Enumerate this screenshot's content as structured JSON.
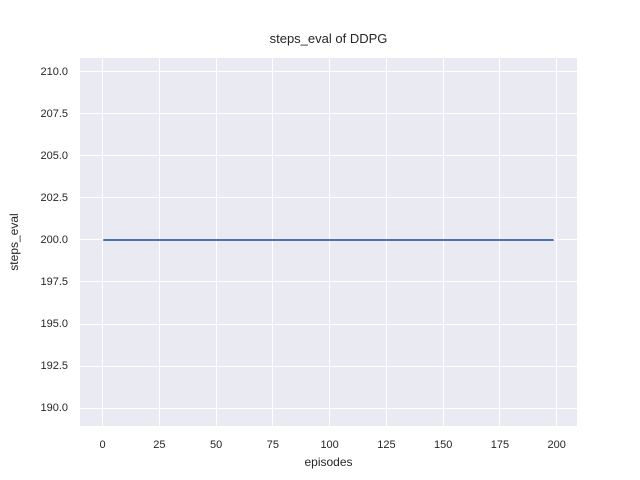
{
  "chart_data": {
    "type": "line",
    "title": "steps_eval of DDPG",
    "xlabel": "episodes",
    "ylabel": "steps_eval",
    "x_tick_values": [
      0,
      25,
      50,
      75,
      100,
      125,
      150,
      175,
      200
    ],
    "x_tick_labels": [
      "0",
      "25",
      "50",
      "75",
      "100",
      "125",
      "150",
      "175",
      "200"
    ],
    "y_tick_values": [
      190.0,
      192.5,
      195.0,
      197.5,
      200.0,
      202.5,
      205.0,
      207.5,
      210.0
    ],
    "y_tick_labels": [
      "190.0",
      "192.5",
      "195.0",
      "197.5",
      "200.0",
      "202.5",
      "205.0",
      "207.5",
      "210.0"
    ],
    "xlim": [
      -9.95,
      208.95
    ],
    "ylim": [
      188.93,
      210.83
    ],
    "grid": true,
    "legend": false,
    "style": "seaborn-darkgrid",
    "series": [
      {
        "name": "DDPG",
        "color": "#4c72b0",
        "points": [
          [
            0,
            200.0
          ],
          [
            199,
            200.0
          ]
        ],
        "description": "constant steps_eval of 200 for all 200 evaluation episodes"
      }
    ],
    "colors": {
      "figure_bg": "#ffffff",
      "plot_bg": "#eaeaf2",
      "grid": "#ffffff",
      "text": "#262626",
      "line": "#4c72b0"
    }
  }
}
